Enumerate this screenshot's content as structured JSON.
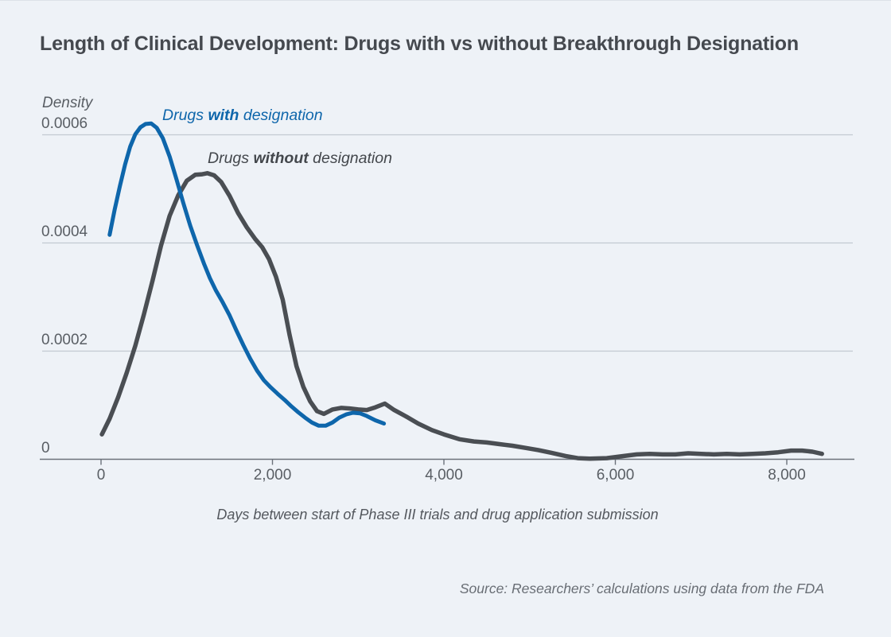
{
  "header": {
    "title": "Length of Clinical Development: Drugs with vs without Breakthrough Designation"
  },
  "legend": [
    {
      "prefix": "Drugs ",
      "emphasis": "with",
      "suffix": " designation",
      "color": "#0e66ab"
    },
    {
      "prefix": "Drugs ",
      "emphasis": "without",
      "suffix": " designation",
      "color": "#43474c"
    }
  ],
  "source_note": "Source: Researchers’ calculations using data from the FDA",
  "chart_data": {
    "type": "line",
    "title": "Length of Clinical Development: Drugs with vs without Breakthrough Designation",
    "xlabel": "Days between start of Phase III trials and drug application submission",
    "ylabel": "Density",
    "xlim": [
      -700,
      8800
    ],
    "ylim": [
      0,
      0.00066
    ],
    "grid": "horizontal-only",
    "legend_position": "inline-labels",
    "x_ticks": {
      "values": [
        0,
        2000,
        4000,
        6000,
        8000
      ],
      "labels": [
        "0",
        "2,000",
        "4,000",
        "6,000",
        "8,000"
      ]
    },
    "y_ticks": {
      "values": [
        0,
        0.0002,
        0.0004,
        0.0006
      ],
      "labels": [
        "0",
        "0.0002",
        "0.0004",
        "0.0006"
      ]
    },
    "colors": {
      "grid": "#c3cad2",
      "axis": "#6b717a",
      "background": "#eef2f7"
    },
    "series": [
      {
        "name": "Drugs without designation",
        "color": "#4a4e53",
        "stroke_width": 5.5,
        "points": [
          [
            10,
            4.6e-05
          ],
          [
            100,
            7.5e-05
          ],
          [
            200,
            0.000115
          ],
          [
            300,
            0.00016
          ],
          [
            400,
            0.00021
          ],
          [
            500,
            0.000268
          ],
          [
            600,
            0.00033
          ],
          [
            700,
            0.000395
          ],
          [
            800,
            0.00045
          ],
          [
            900,
            0.000488
          ],
          [
            1000,
            0.000515
          ],
          [
            1100,
            0.000526
          ],
          [
            1180,
            0.000527
          ],
          [
            1240,
            0.000529
          ],
          [
            1320,
            0.000525
          ],
          [
            1400,
            0.000513
          ],
          [
            1500,
            0.000487
          ],
          [
            1600,
            0.000455
          ],
          [
            1700,
            0.000429
          ],
          [
            1800,
            0.000407
          ],
          [
            1880,
            0.000392
          ],
          [
            1960,
            0.00037
          ],
          [
            2040,
            0.000338
          ],
          [
            2120,
            0.000295
          ],
          [
            2200,
            0.00023
          ],
          [
            2280,
            0.000172
          ],
          [
            2360,
            0.000134
          ],
          [
            2440,
            0.000107
          ],
          [
            2520,
            8.9e-05
          ],
          [
            2600,
            8.4e-05
          ],
          [
            2700,
            9.2e-05
          ],
          [
            2800,
            9.5e-05
          ],
          [
            2900,
            9.4e-05
          ],
          [
            3000,
            9.2e-05
          ],
          [
            3100,
            9.1e-05
          ],
          [
            3200,
            9.6e-05
          ],
          [
            3310,
            0.000103
          ],
          [
            3420,
            9.1e-05
          ],
          [
            3560,
            7.9e-05
          ],
          [
            3700,
            6.6e-05
          ],
          [
            3860,
            5.4e-05
          ],
          [
            4000,
            4.6e-05
          ],
          [
            4180,
            3.7e-05
          ],
          [
            4350,
            3.3e-05
          ],
          [
            4500,
            3.1e-05
          ],
          [
            4650,
            2.8e-05
          ],
          [
            4800,
            2.5e-05
          ],
          [
            4950,
            2.1e-05
          ],
          [
            5100,
            1.7e-05
          ],
          [
            5250,
            1.2e-05
          ],
          [
            5420,
            6e-06
          ],
          [
            5560,
            2e-06
          ],
          [
            5700,
            1e-06
          ],
          [
            5900,
            2e-06
          ],
          [
            6100,
            6e-06
          ],
          [
            6250,
            9e-06
          ],
          [
            6400,
            1e-05
          ],
          [
            6550,
            9e-06
          ],
          [
            6700,
            9e-06
          ],
          [
            6850,
            1.1e-05
          ],
          [
            7000,
            1e-05
          ],
          [
            7150,
            9e-06
          ],
          [
            7300,
            1e-05
          ],
          [
            7450,
            9e-06
          ],
          [
            7600,
            1e-05
          ],
          [
            7750,
            1.1e-05
          ],
          [
            7900,
            1.3e-05
          ],
          [
            8050,
            1.6e-05
          ],
          [
            8180,
            1.6e-05
          ],
          [
            8300,
            1.4e-05
          ],
          [
            8410,
            1e-05
          ]
        ]
      },
      {
        "name": "Drugs with designation",
        "color": "#0e66ab",
        "stroke_width": 5,
        "points": [
          [
            100,
            0.000415
          ],
          [
            160,
            0.000462
          ],
          [
            220,
            0.000505
          ],
          [
            280,
            0.000545
          ],
          [
            340,
            0.000578
          ],
          [
            400,
            0.000601
          ],
          [
            460,
            0.000614
          ],
          [
            520,
            0.00062
          ],
          [
            585,
            0.000621
          ],
          [
            650,
            0.000613
          ],
          [
            720,
            0.000594
          ],
          [
            800,
            0.00056
          ],
          [
            880,
            0.000518
          ],
          [
            960,
            0.000474
          ],
          [
            1040,
            0.000432
          ],
          [
            1120,
            0.000396
          ],
          [
            1200,
            0.000362
          ],
          [
            1270,
            0.000335
          ],
          [
            1340,
            0.000312
          ],
          [
            1420,
            0.00029
          ],
          [
            1500,
            0.000266
          ],
          [
            1580,
            0.000238
          ],
          [
            1660,
            0.000211
          ],
          [
            1740,
            0.000186
          ],
          [
            1820,
            0.000164
          ],
          [
            1900,
            0.000146
          ],
          [
            1980,
            0.000133
          ],
          [
            2060,
            0.000121
          ],
          [
            2140,
            0.00011
          ],
          [
            2220,
            9.8e-05
          ],
          [
            2300,
            8.7e-05
          ],
          [
            2380,
            7.7e-05
          ],
          [
            2460,
            6.8e-05
          ],
          [
            2540,
            6.2e-05
          ],
          [
            2620,
            6.2e-05
          ],
          [
            2700,
            6.8e-05
          ],
          [
            2780,
            7.7e-05
          ],
          [
            2860,
            8.3e-05
          ],
          [
            2940,
            8.6e-05
          ],
          [
            3020,
            8.5e-05
          ],
          [
            3100,
            8e-05
          ],
          [
            3200,
            7.2e-05
          ],
          [
            3300,
            6.6e-05
          ]
        ]
      }
    ]
  }
}
